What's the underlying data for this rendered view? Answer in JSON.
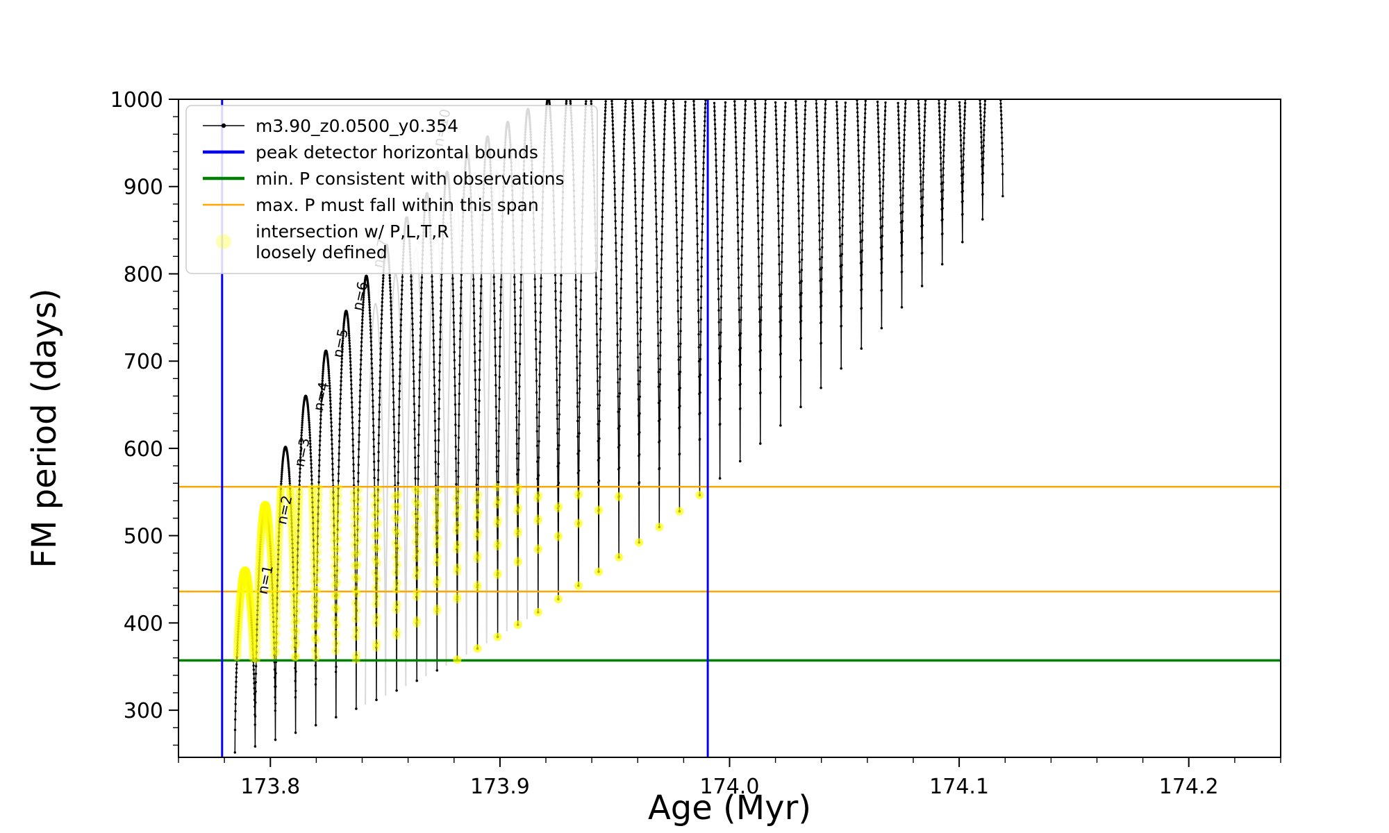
{
  "figure": {
    "background": "#ffffff"
  },
  "chart_data": {
    "type": "line",
    "title": "",
    "xlabel": "Age (Myr)",
    "ylabel": "FM period (days)",
    "xlim": [
      173.76,
      174.24
    ],
    "ylim": [
      246,
      1000
    ],
    "x_major_ticks": [
      173.8,
      173.9,
      174.0,
      174.1,
      174.2
    ],
    "x_tick_labels": [
      "173.8",
      "173.9",
      "174.0",
      "174.1",
      "174.2"
    ],
    "x_minor_step": 0.02,
    "y_major_ticks": [
      300,
      400,
      500,
      600,
      700,
      800,
      900,
      1000
    ],
    "y_tick_labels": [
      "300",
      "400",
      "500",
      "600",
      "700",
      "800",
      "900",
      "1000"
    ],
    "y_minor_step": 20,
    "series": [
      {
        "name": "m3.90_z0.0500_y0.354",
        "color": "#000000",
        "marker": "point",
        "linestyle": "solid"
      }
    ],
    "peak_detector_bounds": {
      "label": "peak detector horizontal bounds",
      "color": "#0000ff",
      "x": [
        173.779,
        173.9905
      ]
    },
    "min_period_line": {
      "label": "min. P consistent with observations",
      "color": "#008000",
      "y": 357
    },
    "max_period_span": {
      "label": "max. P must fall within this span",
      "color": "#ffa500",
      "y": [
        436,
        556
      ]
    },
    "intersection_markers": {
      "label": "intersection w/ P,L,T,R loosely defined",
      "color": "#ffff00",
      "period_band": [
        357,
        556
      ],
      "age_bounds": [
        173.779,
        173.9905
      ]
    },
    "curve_model": {
      "arch_start_age": 173.789,
      "arch_spacing": 0.0088,
      "arch_count": 38,
      "min_envelope_poly": [
        255,
        799,
        3400
      ],
      "peak_envelope": {
        "max": 1100,
        "amp": 640,
        "decay_per_arch": 0.125
      },
      "samples_per_arch": 140,
      "top_exponent": 0.55
    },
    "ghost_track": {
      "color": "#b8b8b8",
      "indices": [
        6,
        13
      ],
      "age_offset": 0.004,
      "peak_scale": 0.96
    },
    "annotation_rotation": -78,
    "annotations": [
      {
        "text": "n=1",
        "age": 173.7985,
        "period": 432,
        "color": "#000000"
      },
      {
        "text": "n=2",
        "age": 173.8068,
        "period": 512,
        "color": "#000000"
      },
      {
        "text": "n=3",
        "age": 173.8145,
        "period": 578,
        "color": "#000000"
      },
      {
        "text": "n=4",
        "age": 173.8228,
        "period": 642,
        "color": "#000000"
      },
      {
        "text": "n=5",
        "age": 173.8312,
        "period": 703,
        "color": "#000000"
      },
      {
        "text": "n=6",
        "age": 173.8398,
        "period": 757,
        "color": "#000000"
      },
      {
        "text": "n=7",
        "age": 173.8486,
        "period": 806,
        "color": "#8c8c8c"
      },
      {
        "text": "n=10",
        "age": 173.875,
        "period": 945,
        "color": "#a0a0a0"
      }
    ]
  },
  "legend": {
    "position": "upper-left",
    "entries": [
      {
        "label": "m3.90_z0.0500_y0.354",
        "marker": "dot-line",
        "color": "#000000"
      },
      {
        "label": "peak detector horizontal bounds",
        "marker": "thick-line",
        "color": "#0000ff"
      },
      {
        "label": "min. P consistent with observations",
        "marker": "thick-line",
        "color": "#008000"
      },
      {
        "label": "max. P must fall within this span",
        "marker": "line",
        "color": "#ffa500"
      },
      {
        "label": "intersection w/ P,L,T,R",
        "label2": "loosely defined",
        "marker": "circle",
        "color": "#ffff00"
      }
    ]
  }
}
